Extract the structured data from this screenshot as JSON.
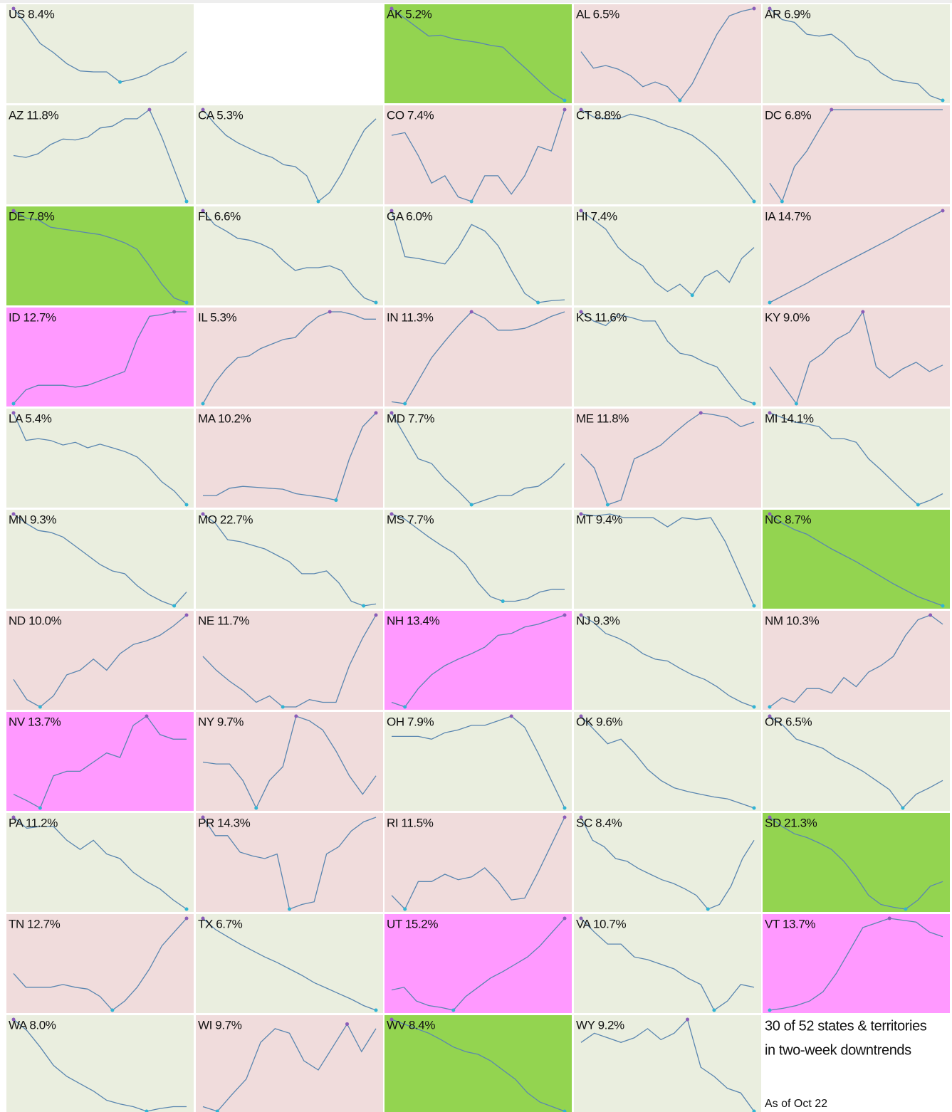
{
  "chart_data": [
    {
      "type": "line",
      "title": "US 8.4%",
      "background": "#eaeedf",
      "ylim": [
        0,
        100
      ],
      "values": [
        100,
        82,
        62,
        52,
        40,
        32,
        31,
        31,
        20,
        23,
        28,
        37,
        42,
        53
      ]
    },
    {
      "type": "line",
      "title": "AK 5.2%",
      "background": "#93d450",
      "ylim": [
        0,
        100
      ],
      "values": [
        100,
        90,
        80,
        70,
        71,
        67,
        65,
        63,
        60,
        58,
        45,
        33,
        20,
        8,
        0
      ]
    },
    {
      "type": "line",
      "title": "AL 6.5%",
      "background": "#f0dcdc",
      "ylim": [
        0,
        100
      ],
      "values": [
        53,
        35,
        38,
        34,
        27,
        15,
        20,
        15,
        0,
        18,
        45,
        72,
        92,
        97,
        100
      ]
    },
    {
      "type": "line",
      "title": "AR 6.9%",
      "background": "#eaeedf",
      "ylim": [
        0,
        100
      ],
      "values": [
        100,
        88,
        85,
        72,
        70,
        72,
        62,
        48,
        43,
        30,
        22,
        20,
        18,
        5,
        0
      ]
    },
    {
      "type": "line",
      "title": "AZ 11.8%",
      "background": "#eaeedf",
      "ylim": [
        0,
        100
      ],
      "values": [
        50,
        48,
        52,
        62,
        68,
        67,
        70,
        80,
        82,
        90,
        90,
        100,
        70,
        35,
        0
      ]
    },
    {
      "type": "line",
      "title": "CA 5.3%",
      "background": "#eaeedf",
      "ylim": [
        0,
        100
      ],
      "values": [
        100,
        85,
        72,
        64,
        58,
        52,
        48,
        40,
        38,
        28,
        0,
        10,
        30,
        55,
        78,
        90
      ]
    },
    {
      "type": "line",
      "title": "CO 7.4%",
      "background": "#f0dcdc",
      "ylim": [
        0,
        100
      ],
      "values": [
        72,
        75,
        50,
        20,
        28,
        5,
        0,
        28,
        28,
        8,
        28,
        60,
        55,
        100
      ]
    },
    {
      "type": "line",
      "title": "CT 8.8%",
      "background": "#eaeedf",
      "ylim": [
        0,
        100
      ],
      "values": [
        100,
        92,
        90,
        90,
        95,
        92,
        88,
        82,
        78,
        72,
        62,
        50,
        35,
        18,
        0
      ]
    },
    {
      "type": "line",
      "title": "DC 6.8%",
      "background": "#f0dcdc",
      "ylim": [
        0,
        100
      ],
      "values": [
        20,
        0,
        38,
        55,
        78,
        100,
        100,
        100,
        100,
        100,
        100,
        100,
        100,
        100,
        100
      ]
    },
    {
      "type": "line",
      "title": "DE 7.8%",
      "background": "#93d450",
      "ylim": [
        0,
        100
      ],
      "values": [
        100,
        92,
        90,
        82,
        80,
        78,
        76,
        74,
        70,
        65,
        58,
        40,
        20,
        5,
        0
      ]
    },
    {
      "type": "line",
      "title": "FL 6.6%",
      "background": "#eaeedf",
      "ylim": [
        0,
        100
      ],
      "values": [
        100,
        85,
        78,
        70,
        68,
        64,
        58,
        45,
        35,
        38,
        38,
        40,
        35,
        18,
        5,
        0
      ]
    },
    {
      "type": "line",
      "title": "GA 6.0%",
      "background": "#eaeedf",
      "ylim": [
        0,
        100
      ],
      "values": [
        100,
        50,
        48,
        45,
        42,
        60,
        85,
        78,
        62,
        35,
        10,
        0,
        2,
        3
      ]
    },
    {
      "type": "line",
      "title": "HI 7.4%",
      "background": "#eaeedf",
      "ylim": [
        0,
        100
      ],
      "values": [
        100,
        90,
        80,
        60,
        48,
        40,
        22,
        12,
        20,
        8,
        28,
        35,
        22,
        48,
        60
      ]
    },
    {
      "type": "line",
      "title": "IA 14.7%",
      "background": "#f0dcdc",
      "ylim": [
        0,
        100
      ],
      "values": [
        0,
        7,
        14,
        21,
        29,
        36,
        43,
        50,
        57,
        64,
        71,
        79,
        86,
        93,
        100
      ]
    },
    {
      "type": "line",
      "title": "ID 12.7%",
      "background": "#ff99ff",
      "ylim": [
        0,
        100
      ],
      "values": [
        0,
        15,
        20,
        20,
        20,
        18,
        20,
        25,
        30,
        35,
        70,
        95,
        97,
        100,
        100
      ]
    },
    {
      "type": "line",
      "title": "IL 5.3%",
      "background": "#f0dcdc",
      "ylim": [
        0,
        100
      ],
      "values": [
        0,
        22,
        38,
        50,
        52,
        60,
        65,
        70,
        72,
        85,
        95,
        100,
        100,
        97,
        92,
        92
      ]
    },
    {
      "type": "line",
      "title": "IN 11.3%",
      "background": "#f0dcdc",
      "ylim": [
        0,
        100
      ],
      "values": [
        2,
        0,
        25,
        50,
        68,
        85,
        100,
        93,
        80,
        80,
        82,
        88,
        95,
        100
      ]
    },
    {
      "type": "line",
      "title": "KS 11.6%",
      "background": "#eaeedf",
      "ylim": [
        0,
        100
      ],
      "values": [
        100,
        90,
        85,
        97,
        94,
        90,
        90,
        68,
        55,
        52,
        45,
        40,
        22,
        5,
        0
      ]
    },
    {
      "type": "line",
      "title": "KY 9.0%",
      "background": "#f0dcdc",
      "ylim": [
        0,
        100
      ],
      "values": [
        40,
        20,
        0,
        45,
        55,
        70,
        78,
        100,
        40,
        28,
        38,
        45,
        35,
        42
      ]
    },
    {
      "type": "line",
      "title": "LA 5.4%",
      "background": "#eaeedf",
      "ylim": [
        0,
        100
      ],
      "values": [
        100,
        70,
        72,
        70,
        65,
        68,
        62,
        66,
        62,
        58,
        52,
        40,
        25,
        15,
        0
      ]
    },
    {
      "type": "line",
      "title": "MA 10.2%",
      "background": "#f0dcdc",
      "ylim": [
        0,
        100
      ],
      "values": [
        10,
        10,
        18,
        20,
        19,
        18,
        17,
        12,
        10,
        8,
        5,
        50,
        85,
        100
      ]
    },
    {
      "type": "line",
      "title": "MD 7.7%",
      "background": "#eaeedf",
      "ylim": [
        0,
        100
      ],
      "values": [
        100,
        75,
        50,
        45,
        28,
        15,
        0,
        5,
        10,
        10,
        18,
        20,
        30,
        45
      ]
    },
    {
      "type": "line",
      "title": "ME 11.8%",
      "background": "#f0dcdc",
      "ylim": [
        0,
        100
      ],
      "values": [
        55,
        40,
        0,
        5,
        50,
        57,
        65,
        78,
        90,
        100,
        98,
        95,
        85,
        90
      ]
    },
    {
      "type": "line",
      "title": "MI 14.1%",
      "background": "#eaeedf",
      "ylim": [
        0,
        100
      ],
      "values": [
        100,
        95,
        90,
        88,
        85,
        72,
        72,
        68,
        50,
        38,
        25,
        12,
        0,
        5,
        12
      ]
    },
    {
      "type": "line",
      "title": "MN 9.3%",
      "background": "#eaeedf",
      "ylim": [
        0,
        100
      ],
      "values": [
        100,
        90,
        82,
        80,
        75,
        65,
        55,
        45,
        38,
        35,
        22,
        12,
        5,
        0,
        15
      ]
    },
    {
      "type": "line",
      "title": "MO 22.7%",
      "background": "#eaeedf",
      "ylim": [
        0,
        100
      ],
      "values": [
        100,
        90,
        72,
        70,
        66,
        62,
        55,
        48,
        35,
        35,
        38,
        25,
        5,
        0,
        2
      ]
    },
    {
      "type": "line",
      "title": "MS 7.7%",
      "background": "#eaeedf",
      "ylim": [
        0,
        100
      ],
      "values": [
        100,
        95,
        85,
        75,
        66,
        58,
        45,
        25,
        10,
        5,
        5,
        8,
        15,
        18,
        18
      ]
    },
    {
      "type": "line",
      "title": "MT 9.4%",
      "background": "#eaeedf",
      "ylim": [
        0,
        100
      ],
      "values": [
        100,
        98,
        100,
        96,
        96,
        96,
        86,
        96,
        94,
        96,
        70,
        35,
        0
      ]
    },
    {
      "type": "line",
      "title": "NC 8.7%",
      "background": "#93d450",
      "ylim": [
        0,
        100
      ],
      "values": [
        100,
        90,
        83,
        78,
        70,
        62,
        55,
        48,
        40,
        32,
        24,
        17,
        10,
        5,
        0
      ]
    },
    {
      "type": "line",
      "title": "ND 10.0%",
      "background": "#f0dcdc",
      "ylim": [
        0,
        100
      ],
      "values": [
        30,
        8,
        0,
        12,
        35,
        40,
        52,
        40,
        58,
        68,
        72,
        78,
        88,
        100
      ]
    },
    {
      "type": "line",
      "title": "NE 11.7%",
      "background": "#f0dcdc",
      "ylim": [
        0,
        100
      ],
      "values": [
        55,
        40,
        28,
        18,
        5,
        12,
        0,
        0,
        8,
        5,
        5,
        45,
        75,
        100
      ]
    },
    {
      "type": "line",
      "title": "NH 13.4%",
      "background": "#ff99ff",
      "ylim": [
        0,
        100
      ],
      "values": [
        5,
        0,
        20,
        35,
        45,
        52,
        58,
        65,
        78,
        80,
        87,
        90,
        95,
        100
      ]
    },
    {
      "type": "line",
      "title": "NJ 9.3%",
      "background": "#eaeedf",
      "ylim": [
        0,
        100
      ],
      "values": [
        100,
        92,
        80,
        75,
        68,
        58,
        52,
        50,
        42,
        35,
        30,
        22,
        12,
        5,
        0
      ]
    },
    {
      "type": "line",
      "title": "NM 10.3%",
      "background": "#f0dcdc",
      "ylim": [
        0,
        100
      ],
      "values": [
        0,
        10,
        5,
        20,
        20,
        15,
        32,
        22,
        38,
        45,
        55,
        78,
        95,
        100,
        90
      ]
    },
    {
      "type": "line",
      "title": "NV 13.7%",
      "background": "#ff99ff",
      "ylim": [
        0,
        100
      ],
      "values": [
        15,
        8,
        0,
        35,
        40,
        40,
        50,
        60,
        55,
        90,
        100,
        80,
        75,
        75
      ]
    },
    {
      "type": "line",
      "title": "NY 9.7%",
      "background": "#f0dcdc",
      "ylim": [
        0,
        100
      ],
      "values": [
        50,
        48,
        48,
        30,
        0,
        30,
        45,
        100,
        95,
        85,
        62,
        35,
        15,
        35
      ]
    },
    {
      "type": "line",
      "title": "OH 7.9%",
      "background": "#eaeedf",
      "ylim": [
        0,
        100
      ],
      "values": [
        78,
        78,
        78,
        75,
        82,
        85,
        90,
        90,
        95,
        100,
        88,
        60,
        30,
        0
      ]
    },
    {
      "type": "line",
      "title": "OK 9.6%",
      "background": "#eaeedf",
      "ylim": [
        0,
        100
      ],
      "values": [
        100,
        85,
        70,
        75,
        60,
        42,
        30,
        22,
        18,
        15,
        12,
        10,
        5,
        0
      ]
    },
    {
      "type": "line",
      "title": "OR 6.5%",
      "background": "#eaeedf",
      "ylim": [
        0,
        100
      ],
      "values": [
        100,
        90,
        75,
        70,
        65,
        55,
        48,
        40,
        30,
        20,
        0,
        15,
        22,
        30
      ]
    },
    {
      "type": "line",
      "title": "PA 11.2%",
      "background": "#eaeedf",
      "ylim": [
        0,
        100
      ],
      "values": [
        100,
        88,
        90,
        90,
        75,
        65,
        75,
        60,
        55,
        40,
        30,
        22,
        10,
        0
      ]
    },
    {
      "type": "line",
      "title": "PR 14.3%",
      "background": "#f0dcdc",
      "ylim": [
        0,
        100
      ],
      "values": [
        100,
        80,
        80,
        62,
        58,
        55,
        60,
        0,
        5,
        8,
        60,
        68,
        85,
        95,
        100
      ]
    },
    {
      "type": "line",
      "title": "RI 11.5%",
      "background": "#f0dcdc",
      "ylim": [
        0,
        100
      ],
      "values": [
        15,
        0,
        30,
        30,
        38,
        32,
        35,
        45,
        30,
        10,
        12,
        40,
        70,
        100
      ]
    },
    {
      "type": "line",
      "title": "SC 8.4%",
      "background": "#eaeedf",
      "ylim": [
        0,
        100
      ],
      "values": [
        100,
        75,
        68,
        55,
        52,
        44,
        38,
        32,
        28,
        22,
        15,
        0,
        5,
        25,
        55,
        75
      ]
    },
    {
      "type": "line",
      "title": "SD 21.3%",
      "background": "#93d450",
      "ylim": [
        0,
        100
      ],
      "values": [
        100,
        90,
        82,
        78,
        72,
        65,
        52,
        35,
        15,
        5,
        2,
        0,
        10,
        25,
        30
      ]
    },
    {
      "type": "line",
      "title": "TN 12.7%",
      "background": "#f0dcdc",
      "ylim": [
        0,
        100
      ],
      "values": [
        40,
        25,
        25,
        25,
        28,
        25,
        23,
        15,
        0,
        10,
        25,
        45,
        70,
        85,
        100
      ]
    },
    {
      "type": "line",
      "title": "TX 6.7%",
      "background": "#eaeedf",
      "ylim": [
        0,
        100
      ],
      "values": [
        100,
        88,
        80,
        72,
        65,
        58,
        52,
        45,
        38,
        30,
        24,
        18,
        12,
        5,
        0
      ]
    },
    {
      "type": "line",
      "title": "UT 15.2%",
      "background": "#ff99ff",
      "ylim": [
        0,
        100
      ],
      "values": [
        22,
        25,
        10,
        5,
        3,
        0,
        15,
        25,
        35,
        42,
        50,
        58,
        70,
        85,
        100
      ]
    },
    {
      "type": "line",
      "title": "VA 10.7%",
      "background": "#eaeedf",
      "ylim": [
        0,
        100
      ],
      "values": [
        100,
        85,
        72,
        72,
        58,
        55,
        50,
        45,
        35,
        28,
        0,
        10,
        28,
        25
      ]
    },
    {
      "type": "line",
      "title": "VT 13.7%",
      "background": "#ff99ff",
      "ylim": [
        0,
        100
      ],
      "values": [
        0,
        2,
        5,
        10,
        20,
        40,
        65,
        90,
        95,
        100,
        98,
        96,
        85,
        80
      ]
    },
    {
      "type": "line",
      "title": "WA 8.0%",
      "background": "#eaeedf",
      "ylim": [
        0,
        100
      ],
      "values": [
        100,
        88,
        70,
        50,
        38,
        30,
        22,
        12,
        8,
        5,
        0,
        3,
        5,
        5
      ]
    },
    {
      "type": "line",
      "title": "WI 9.7%",
      "background": "#f0dcdc",
      "ylim": [
        0,
        100
      ],
      "values": [
        5,
        0,
        18,
        35,
        75,
        90,
        85,
        55,
        45,
        70,
        95,
        65,
        90
      ]
    },
    {
      "type": "line",
      "title": "WV 8.4%",
      "background": "#93d450",
      "ylim": [
        0,
        100
      ],
      "values": [
        100,
        95,
        90,
        85,
        78,
        70,
        65,
        62,
        55,
        45,
        35,
        20,
        10,
        5,
        0
      ]
    },
    {
      "type": "line",
      "title": "WY 9.2%",
      "background": "#eaeedf",
      "ylim": [
        0,
        100
      ],
      "values": [
        75,
        85,
        80,
        75,
        80,
        90,
        78,
        85,
        100,
        48,
        38,
        25,
        20,
        0
      ]
    }
  ],
  "style": {
    "line": "#5a86b0",
    "max_dot": "#8a5cb8",
    "min_dot": "#30b4d4"
  },
  "caption": {
    "lines": [
      "30 of 52 states & territories",
      "in two-week downtrends"
    ],
    "date": "As of Oct 22"
  }
}
